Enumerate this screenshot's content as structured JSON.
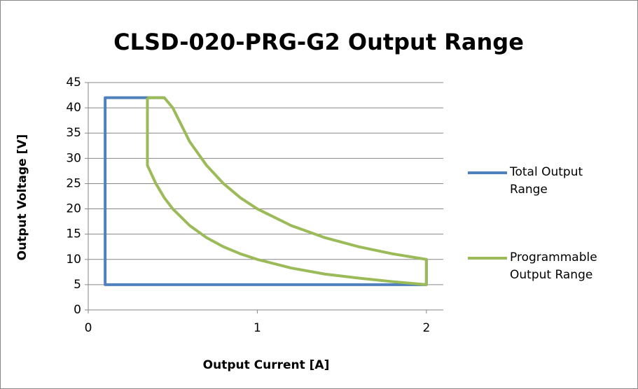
{
  "chart_data": {
    "type": "line",
    "title": "CLSD-020-PRG-G2 Output Range",
    "x_label": "Output Current [A]",
    "y_label": "Output Voltage [V]",
    "xlim": [
      0,
      2.1
    ],
    "xticks": [
      0,
      1,
      2
    ],
    "ylim": [
      0,
      45
    ],
    "yticks": [
      0,
      5,
      10,
      15,
      20,
      25,
      30,
      35,
      40,
      45
    ],
    "grid": true,
    "legend": "right",
    "series": [
      {
        "name": "Total Output Range",
        "color": "#4f81bd",
        "x": [
          0.45,
          0.1,
          0.1,
          2,
          2
        ],
        "values": [
          42,
          42,
          5,
          5,
          10
        ]
      },
      {
        "name": "Programmable Output  Range",
        "color": "#9bbb59",
        "x": [
          0.35,
          0.45,
          0.5,
          0.6,
          0.7,
          0.8,
          0.9,
          1.0,
          1.2,
          1.4,
          1.6,
          1.8,
          2.0,
          2.0,
          1.8,
          1.6,
          1.4,
          1.2,
          1.0,
          0.9,
          0.8,
          0.7,
          0.6,
          0.5,
          0.45,
          0.4,
          0.35,
          0.35
        ],
        "values": [
          42,
          42,
          40,
          33.3,
          28.6,
          25,
          22.2,
          20,
          16.7,
          14.3,
          12.5,
          11.1,
          10,
          5,
          5.6,
          6.3,
          7.1,
          8.3,
          10,
          11.1,
          12.5,
          14.3,
          16.7,
          20,
          22.2,
          25,
          28.6,
          42
        ]
      }
    ]
  }
}
